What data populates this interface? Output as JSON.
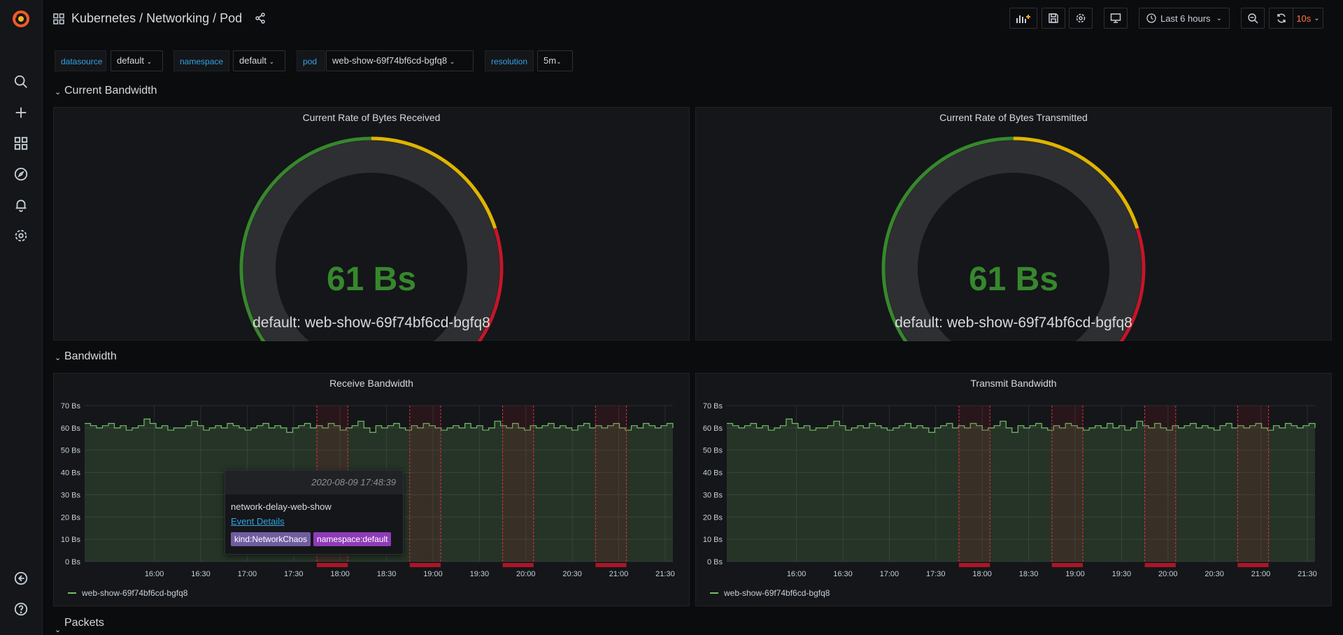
{
  "header": {
    "breadcrumb": "Kubernetes / Networking / Pod",
    "time_range": "Last 6 hours",
    "refresh": "10s"
  },
  "variables": [
    {
      "label": "datasource",
      "value": "default"
    },
    {
      "label": "namespace",
      "value": "default"
    },
    {
      "label": "pod",
      "value": "web-show-69f74bf6cd-bgfq8"
    },
    {
      "label": "resolution",
      "value": "5m"
    }
  ],
  "rows": {
    "current_bandwidth": "Current Bandwidth",
    "bandwidth": "Bandwidth",
    "packets": "Packets"
  },
  "gauges": [
    {
      "title": "Current Rate of Bytes Received",
      "value": "61 Bs",
      "legend": "default: web-show-69f74bf6cd-bgfq8"
    },
    {
      "title": "Current Rate of Bytes Transmitted",
      "value": "61 Bs",
      "legend": "default: web-show-69f74bf6cd-bgfq8"
    }
  ],
  "timeseries": [
    {
      "title": "Receive Bandwidth",
      "legend": "web-show-69f74bf6cd-bgfq8"
    },
    {
      "title": "Transmit Bandwidth",
      "legend": "web-show-69f74bf6cd-bgfq8"
    }
  ],
  "chart_data": {
    "type": "line",
    "y_ticks": [
      "70 Bs",
      "60 Bs",
      "50 Bs",
      "40 Bs",
      "30 Bs",
      "20 Bs",
      "10 Bs",
      "0 Bs"
    ],
    "ylim": [
      0,
      70
    ],
    "x_ticks": [
      "16:00",
      "16:30",
      "17:00",
      "17:30",
      "18:00",
      "18:30",
      "19:00",
      "19:30",
      "20:00",
      "20:30",
      "21:00",
      "21:30"
    ],
    "x_range_minutes": [
      915,
      1295
    ],
    "annotation_ranges_minutes": [
      [
        1065,
        1085
      ],
      [
        1125,
        1145
      ],
      [
        1185,
        1205
      ],
      [
        1245,
        1265
      ]
    ],
    "series_values": [
      62,
      61,
      60,
      61,
      62,
      60,
      61,
      59,
      60,
      61,
      64,
      62,
      60,
      61,
      59,
      60,
      60,
      61,
      63,
      61,
      59,
      60,
      61,
      60,
      62,
      61,
      60,
      59,
      60,
      61,
      62,
      60,
      61,
      60,
      58,
      60,
      61,
      62,
      60,
      61,
      60,
      62,
      61,
      59,
      60,
      61,
      63,
      60,
      58,
      61,
      60,
      61,
      62,
      60,
      59,
      61,
      60,
      62,
      61,
      60,
      59,
      60,
      61,
      60,
      62,
      60,
      61,
      59,
      60,
      63,
      61,
      60,
      62,
      60,
      59,
      61,
      60,
      61,
      62,
      60,
      61,
      60,
      59,
      61,
      62,
      60,
      61,
      60,
      61,
      62,
      60,
      59,
      61,
      60,
      62,
      61,
      60,
      61,
      62,
      60
    ]
  },
  "tooltip": {
    "time": "2020-08-09 17:48:39",
    "title": "network-delay-web-show",
    "link": "Event Details",
    "tags": [
      "kind:NetworkChaos",
      "namespace:default"
    ]
  },
  "colors": {
    "green": "#37872d",
    "yellow": "#e0b400",
    "red": "#c4162a",
    "series": "#73bf69"
  }
}
